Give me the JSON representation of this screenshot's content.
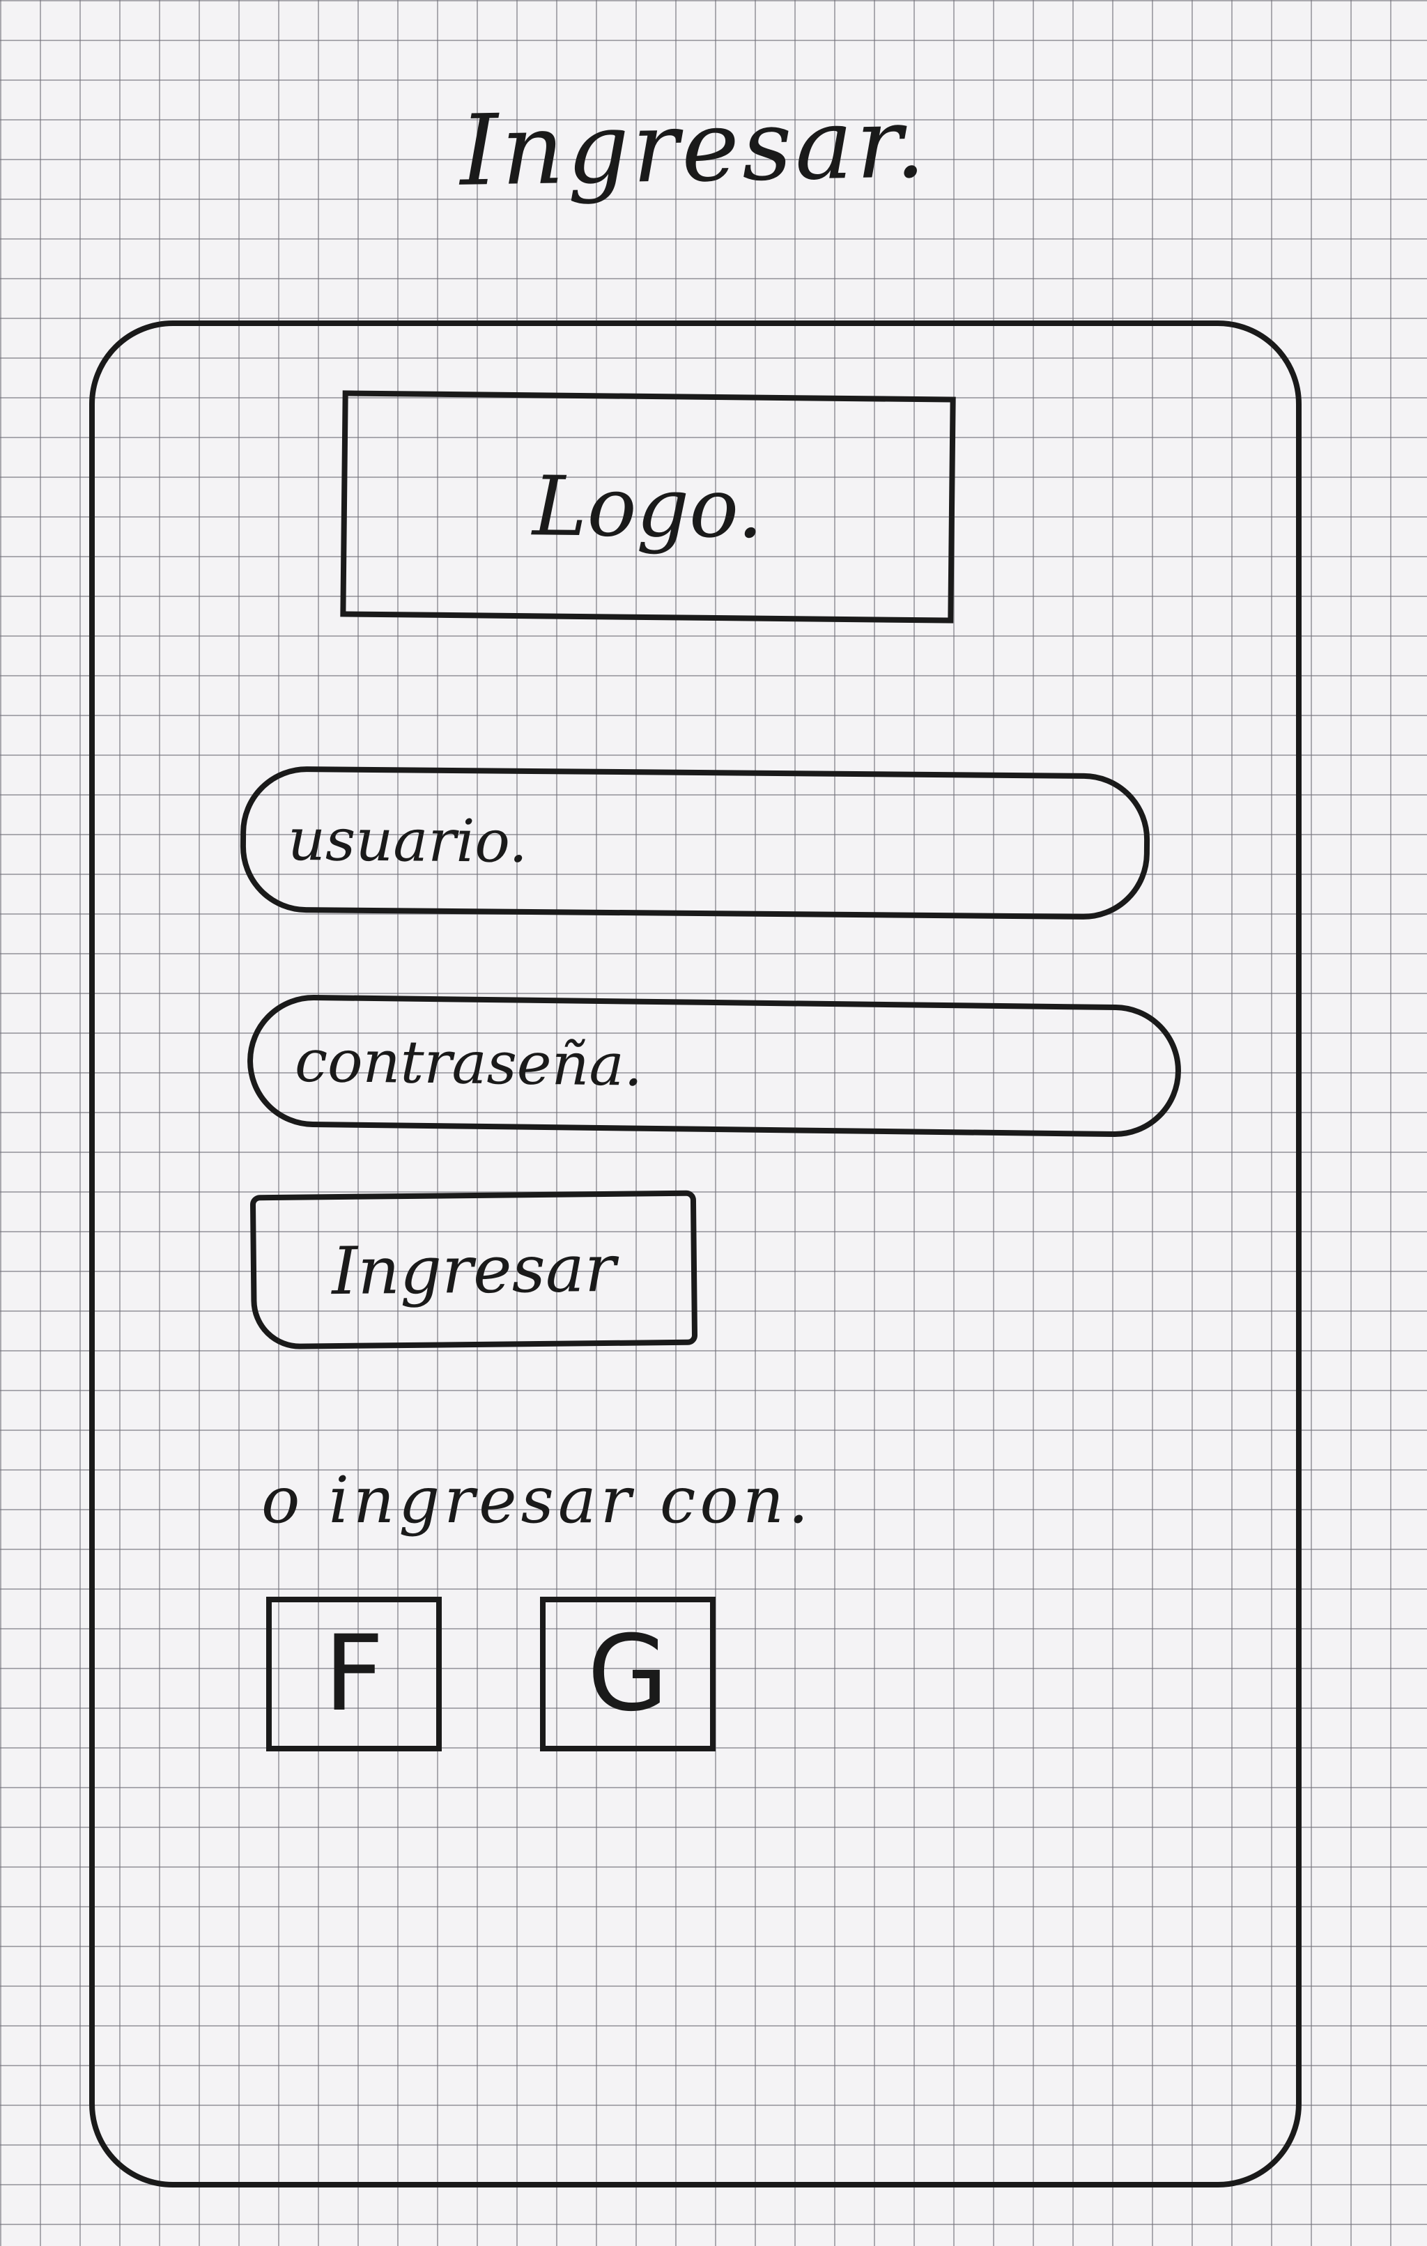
{
  "title": "Ingresar.",
  "logo": {
    "label": "Logo."
  },
  "form": {
    "username_placeholder": "usuario.",
    "password_placeholder": "contraseña.",
    "submit_label": "Ingresar"
  },
  "social": {
    "label": "o ingresar con.",
    "buttons": [
      {
        "label": "F",
        "icon": "facebook-icon"
      },
      {
        "label": "G",
        "icon": "google-icon"
      }
    ]
  }
}
